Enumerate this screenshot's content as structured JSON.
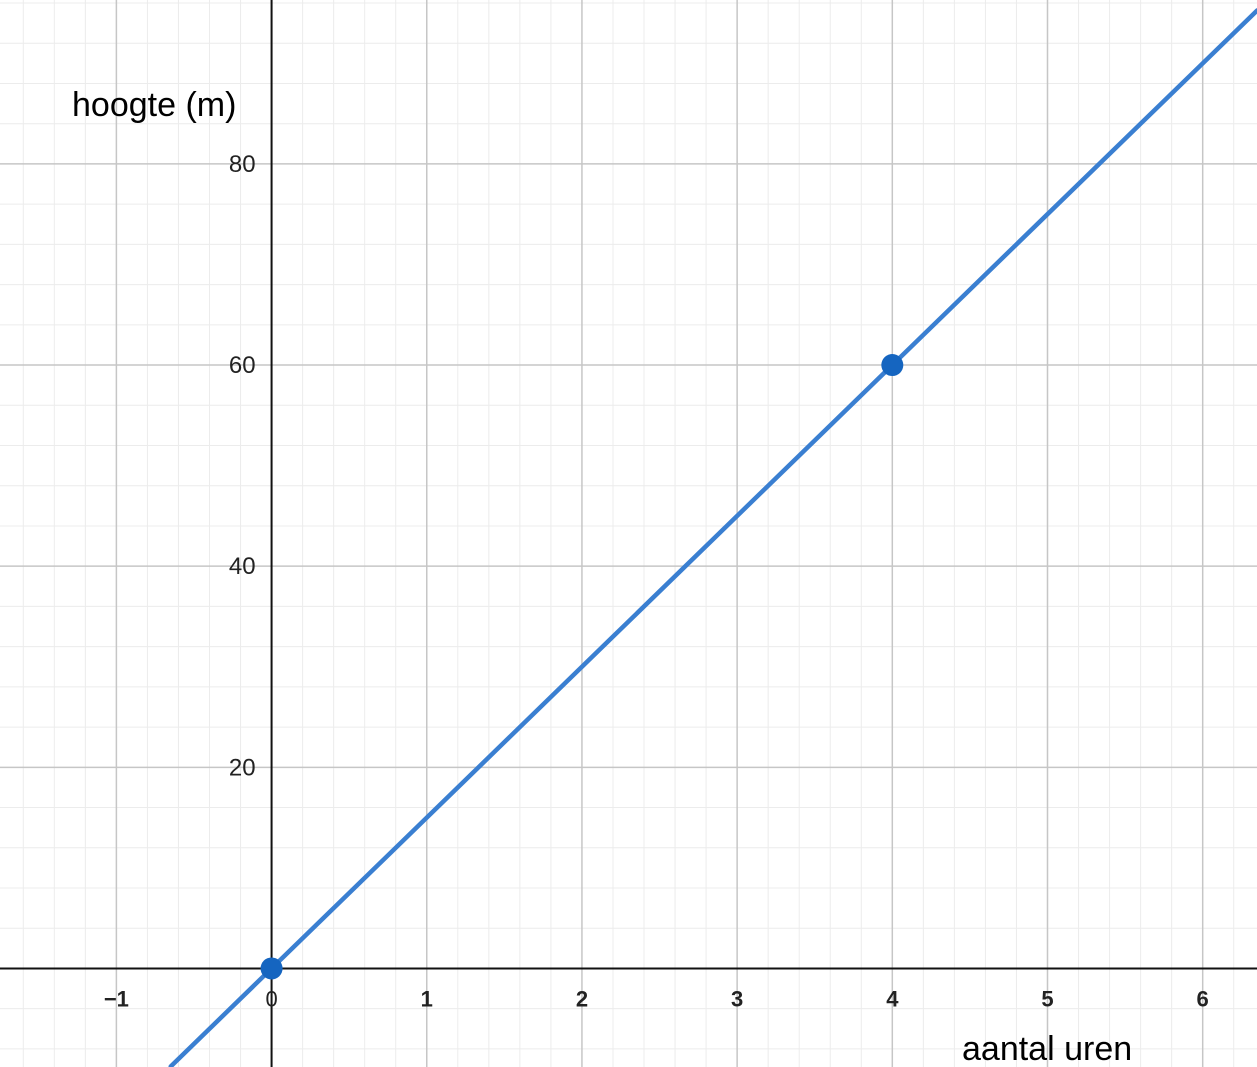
{
  "chart_data": {
    "type": "line",
    "title": "",
    "xlabel": "aantal uren",
    "ylabel": "hoogte (m)",
    "xlim": [
      -1.75,
      6.35
    ],
    "ylim": [
      -9.8,
      96.3
    ],
    "x_ticks": [
      -1,
      0,
      1,
      2,
      3,
      4,
      5,
      6
    ],
    "x_tick_labels": [
      "−1",
      "0",
      "1",
      "2",
      "3",
      "4",
      "5",
      "6"
    ],
    "y_ticks": [
      20,
      40,
      60,
      80
    ],
    "y_tick_labels": [
      "20",
      "40",
      "60",
      "80"
    ],
    "grid": true,
    "minor_grid": true,
    "series": [
      {
        "x": [
          -0.65,
          6.35
        ],
        "y": [
          -9.75,
          95.25
        ],
        "color": "#3a7fd1"
      }
    ],
    "points": [
      {
        "x": 0,
        "y": 0,
        "color": "#1565c0"
      },
      {
        "x": 4,
        "y": 60,
        "color": "#1565c0"
      }
    ]
  }
}
